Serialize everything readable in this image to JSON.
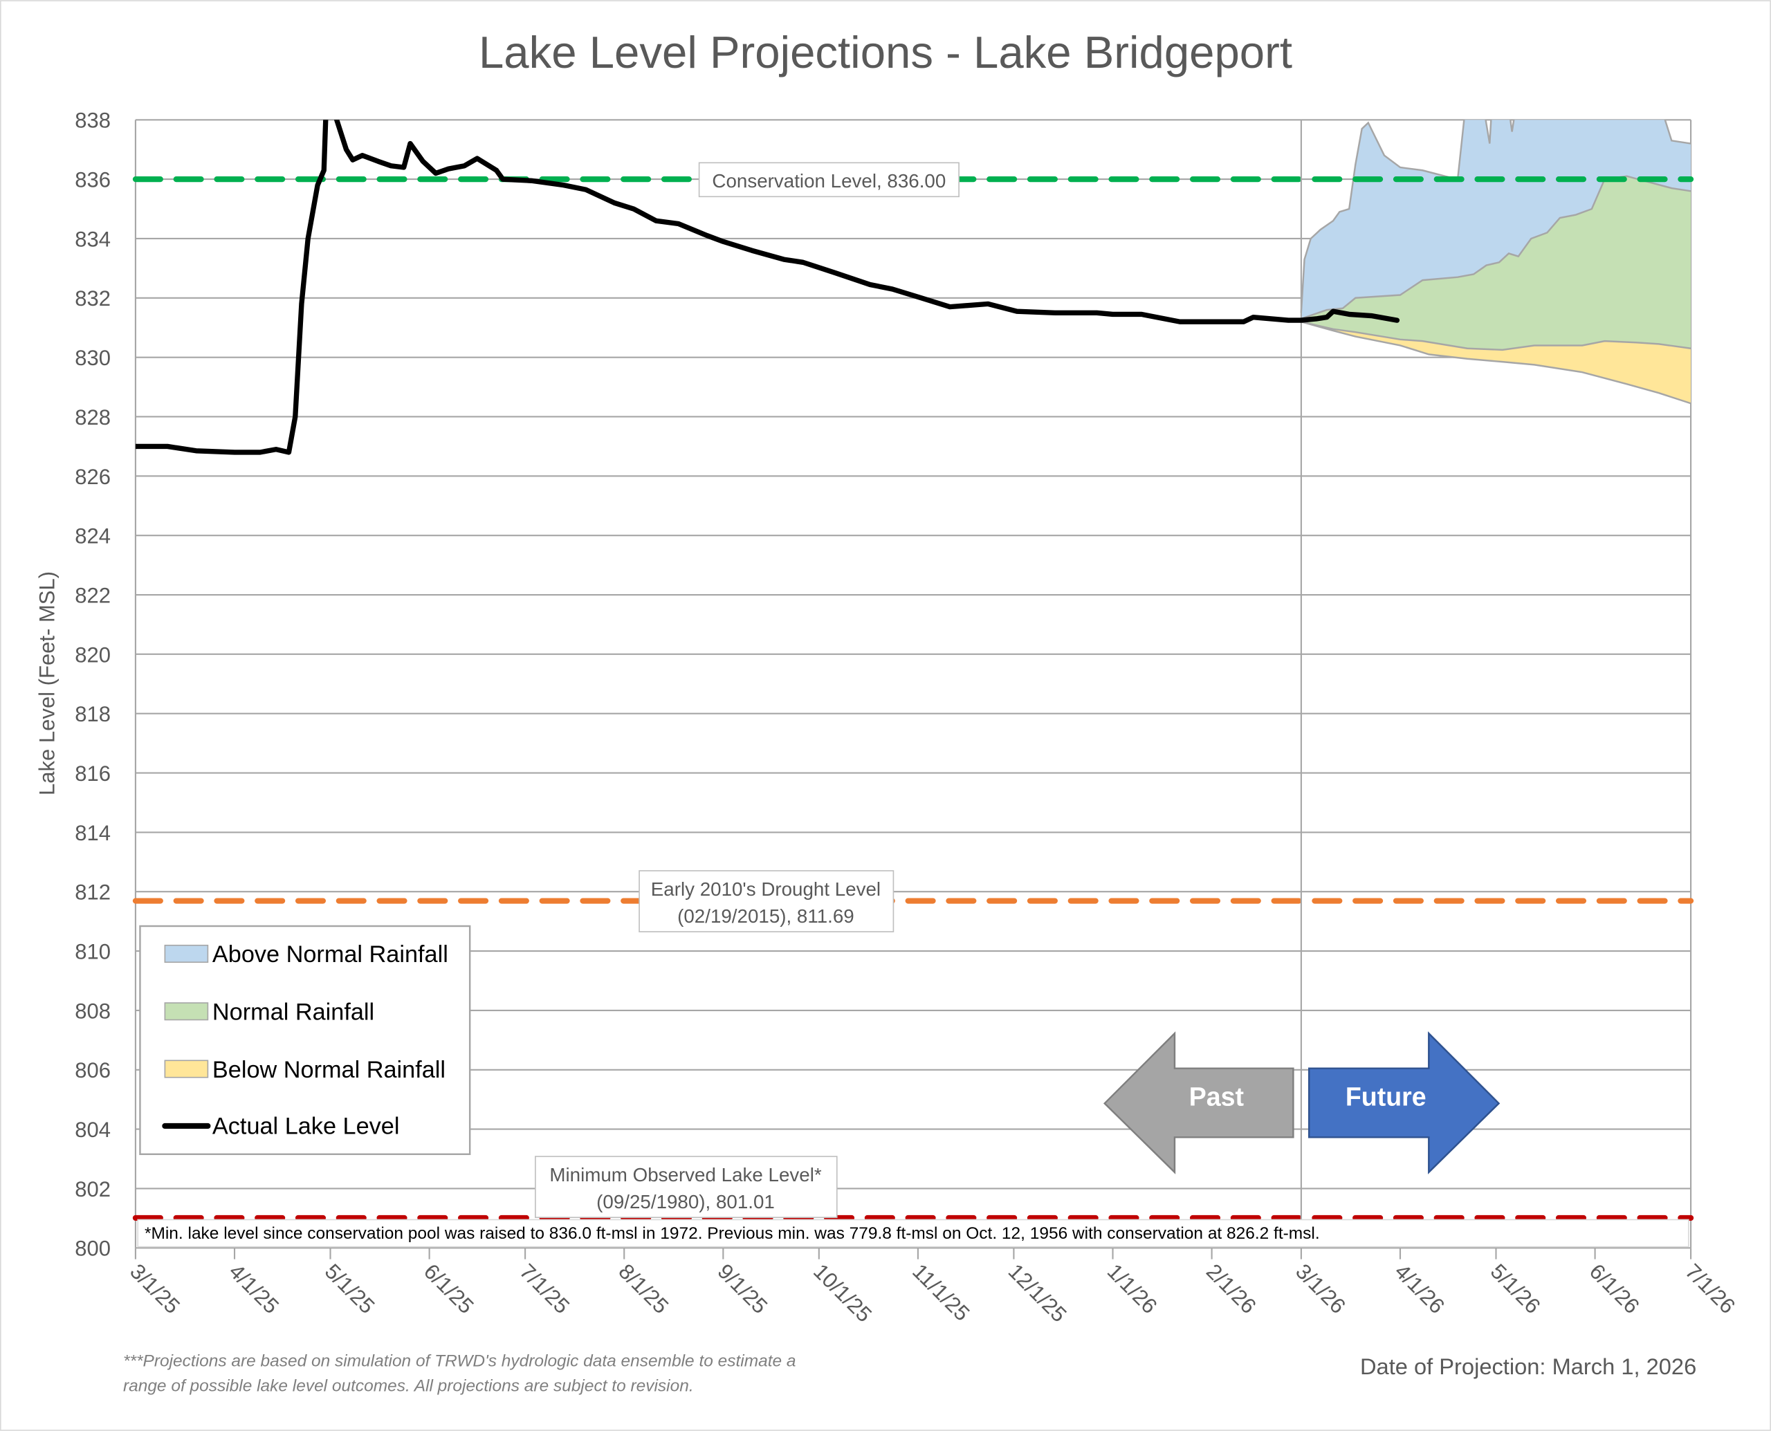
{
  "chart_data": {
    "type": "area",
    "title": "Lake Level Projections - Lake Bridgeport",
    "xlabel": "",
    "ylabel": "Lake Level (Feet- MSL)",
    "xlim": [
      "2025-03-01",
      "2026-07-01"
    ],
    "ylim": [
      800,
      838
    ],
    "grid": true,
    "x_tick_labels": [
      "3/1/25",
      "4/1/25",
      "5/1/25",
      "6/1/25",
      "7/1/25",
      "8/1/25",
      "9/1/25",
      "10/1/25",
      "11/1/25",
      "12/1/25",
      "1/1/26",
      "2/1/26",
      "3/1/26",
      "4/1/26",
      "5/1/26",
      "6/1/26",
      "7/1/26"
    ],
    "x_tick_dates": [
      "2025-03-01",
      "2025-04-01",
      "2025-05-01",
      "2025-06-01",
      "2025-07-01",
      "2025-08-01",
      "2025-09-01",
      "2025-10-01",
      "2025-11-01",
      "2025-12-01",
      "2026-01-01",
      "2026-02-01",
      "2026-03-01",
      "2026-04-01",
      "2026-05-01",
      "2026-06-01",
      "2026-07-01"
    ],
    "y_ticks": [
      800,
      802,
      804,
      806,
      808,
      810,
      812,
      814,
      816,
      818,
      820,
      822,
      824,
      826,
      828,
      830,
      832,
      834,
      836,
      838
    ],
    "legend_position": "bottom-left",
    "legend": [
      {
        "label": "Above Normal Rainfall",
        "color": "#BDD7EE"
      },
      {
        "label": "Normal Rainfall",
        "color": "#C5E0B4"
      },
      {
        "label": "Below Normal Rainfall",
        "color": "#FFE699"
      },
      {
        "label": "Actual Lake Level",
        "color": "#000000"
      }
    ],
    "series": [
      {
        "name": "Actual Lake Level",
        "type": "line",
        "color": "#000000",
        "points": [
          [
            "2025-03-01",
            827.0
          ],
          [
            "2025-03-11",
            827.0
          ],
          [
            "2025-03-20",
            826.85
          ],
          [
            "2025-04-01",
            826.8
          ],
          [
            "2025-04-09",
            826.8
          ],
          [
            "2025-04-14",
            826.9
          ],
          [
            "2025-04-18",
            826.8
          ],
          [
            "2025-04-20",
            828.0
          ],
          [
            "2025-04-22",
            831.8
          ],
          [
            "2025-04-24",
            834.0
          ],
          [
            "2025-04-27",
            835.8
          ],
          [
            "2025-04-29",
            836.3
          ],
          [
            "2025-04-30",
            839.5
          ],
          [
            "2025-05-03",
            838.0
          ],
          [
            "2025-05-06",
            837.0
          ],
          [
            "2025-05-08",
            836.65
          ],
          [
            "2025-05-11",
            836.8
          ],
          [
            "2025-05-16",
            836.6
          ],
          [
            "2025-05-20",
            836.45
          ],
          [
            "2025-05-24",
            836.4
          ],
          [
            "2025-05-26",
            837.2
          ],
          [
            "2025-05-30",
            836.6
          ],
          [
            "2025-06-03",
            836.2
          ],
          [
            "2025-06-07",
            836.35
          ],
          [
            "2025-06-12",
            836.45
          ],
          [
            "2025-06-16",
            836.7
          ],
          [
            "2025-06-22",
            836.3
          ],
          [
            "2025-06-24",
            836.0
          ],
          [
            "2025-07-03",
            835.95
          ],
          [
            "2025-07-13",
            835.8
          ],
          [
            "2025-07-20",
            835.65
          ],
          [
            "2025-07-29",
            835.2
          ],
          [
            "2025-08-04",
            835.0
          ],
          [
            "2025-08-11",
            834.6
          ],
          [
            "2025-08-18",
            834.5
          ],
          [
            "2025-08-27",
            834.1
          ],
          [
            "2025-09-01",
            833.9
          ],
          [
            "2025-09-10",
            833.6
          ],
          [
            "2025-09-20",
            833.3
          ],
          [
            "2025-09-26",
            833.2
          ],
          [
            "2025-10-06",
            832.85
          ],
          [
            "2025-10-17",
            832.45
          ],
          [
            "2025-10-24",
            832.3
          ],
          [
            "2025-11-02",
            832.0
          ],
          [
            "2025-11-11",
            831.7
          ],
          [
            "2025-11-23",
            831.8
          ],
          [
            "2025-12-02",
            831.55
          ],
          [
            "2025-12-14",
            831.5
          ],
          [
            "2025-12-27",
            831.5
          ],
          [
            "2026-01-01",
            831.45
          ],
          [
            "2026-01-10",
            831.45
          ],
          [
            "2026-01-22",
            831.2
          ],
          [
            "2026-02-02",
            831.2
          ],
          [
            "2026-02-11",
            831.2
          ],
          [
            "2026-02-14",
            831.35
          ],
          [
            "2026-02-25",
            831.25
          ],
          [
            "2026-03-01",
            831.25
          ],
          [
            "2026-03-06",
            831.3
          ],
          [
            "2026-03-09",
            831.35
          ],
          [
            "2026-03-11",
            831.55
          ],
          [
            "2026-03-16",
            831.45
          ],
          [
            "2026-03-23",
            831.4
          ],
          [
            "2026-03-31",
            831.25
          ]
        ]
      },
      {
        "name": "Above Normal Rainfall",
        "type": "area",
        "color": "#BDD7EE",
        "upper": [
          [
            "2026-03-01",
            831.5
          ],
          [
            "2026-03-02",
            833.3
          ],
          [
            "2026-03-04",
            834.0
          ],
          [
            "2026-03-07",
            834.3
          ],
          [
            "2026-03-11",
            834.6
          ],
          [
            "2026-03-13",
            834.9
          ],
          [
            "2026-03-16",
            835.0
          ],
          [
            "2026-03-18",
            836.5
          ],
          [
            "2026-03-20",
            837.7
          ],
          [
            "2026-03-22",
            837.9
          ],
          [
            "2026-03-27",
            836.8
          ],
          [
            "2026-04-01",
            836.4
          ],
          [
            "2026-04-08",
            836.3
          ],
          [
            "2026-04-15",
            836.1
          ],
          [
            "2026-04-19",
            836.0
          ],
          [
            "2026-04-22",
            839
          ],
          [
            "2026-04-27",
            838.5
          ],
          [
            "2026-04-29",
            837.2
          ],
          [
            "2026-04-30",
            839
          ],
          [
            "2026-05-05",
            838.4
          ],
          [
            "2026-05-06",
            837.6
          ],
          [
            "2026-05-08",
            839
          ],
          [
            "2026-06-20",
            839
          ],
          [
            "2026-06-25",
            837.3
          ],
          [
            "2026-07-01",
            837.2
          ]
        ]
      },
      {
        "name": "Normal Rainfall",
        "type": "area",
        "color": "#C5E0B4",
        "upper": [
          [
            "2026-03-01",
            831.3
          ],
          [
            "2026-03-09",
            831.6
          ],
          [
            "2026-03-14",
            831.65
          ],
          [
            "2026-03-18",
            832.0
          ],
          [
            "2026-04-01",
            832.1
          ],
          [
            "2026-04-08",
            832.6
          ],
          [
            "2026-04-19",
            832.7
          ],
          [
            "2026-04-24",
            832.8
          ],
          [
            "2026-04-28",
            833.1
          ],
          [
            "2026-05-02",
            833.2
          ],
          [
            "2026-05-05",
            833.5
          ],
          [
            "2026-05-08",
            833.4
          ],
          [
            "2026-05-12",
            834.0
          ],
          [
            "2026-05-17",
            834.2
          ],
          [
            "2026-05-21",
            834.7
          ],
          [
            "2026-05-26",
            834.8
          ],
          [
            "2026-05-31",
            835.0
          ],
          [
            "2026-06-04",
            836.0
          ],
          [
            "2026-06-11",
            836.1
          ],
          [
            "2026-06-18",
            835.9
          ],
          [
            "2026-06-25",
            835.7
          ],
          [
            "2026-07-01",
            835.6
          ]
        ]
      },
      {
        "name": "Below Normal Rainfall",
        "type": "area",
        "color": "#FFE699",
        "upper": [
          [
            "2026-03-01",
            831.2
          ],
          [
            "2026-03-11",
            830.95
          ],
          [
            "2026-03-18",
            830.85
          ],
          [
            "2026-04-01",
            830.6
          ],
          [
            "2026-04-08",
            830.55
          ],
          [
            "2026-04-22",
            830.3
          ],
          [
            "2026-05-03",
            830.25
          ],
          [
            "2026-05-13",
            830.4
          ],
          [
            "2026-05-28",
            830.4
          ],
          [
            "2026-06-04",
            830.55
          ],
          [
            "2026-06-14",
            830.5
          ],
          [
            "2026-06-21",
            830.45
          ],
          [
            "2026-07-01",
            830.3
          ]
        ],
        "lower": [
          [
            "2026-03-01",
            831.2
          ],
          [
            "2026-03-11",
            830.9
          ],
          [
            "2026-03-18",
            830.7
          ],
          [
            "2026-04-01",
            830.4
          ],
          [
            "2026-04-10",
            830.1
          ],
          [
            "2026-04-22",
            829.95
          ],
          [
            "2026-05-03",
            829.85
          ],
          [
            "2026-05-13",
            829.75
          ],
          [
            "2026-05-28",
            829.5
          ],
          [
            "2026-06-11",
            829.1
          ],
          [
            "2026-06-21",
            828.8
          ],
          [
            "2026-07-01",
            828.45
          ]
        ]
      }
    ],
    "reference_lines": [
      {
        "value": 836.0,
        "color": "#00B050",
        "label": [
          "Conservation Level, 836.00"
        ]
      },
      {
        "value": 811.69,
        "color": "#ED7D31",
        "label": [
          "Early 2010's Drought Level",
          "(02/19/2015), 811.69"
        ]
      },
      {
        "value": 801.01,
        "color": "#C00000",
        "label": [
          "Minimum Observed Lake Level*",
          "(09/25/1980), 801.01"
        ]
      }
    ],
    "divider_date": "2026-03-01",
    "arrows": {
      "past": "Past",
      "future": "Future",
      "past_color": "#A5A5A5",
      "future_color": "#4472C4"
    },
    "footnote": "*Min. lake level since conservation pool was raised to 836.0 ft-msl in 1972.  Previous min. was 779.8 ft-msl on Oct. 12, 1956 with conservation at 826.2 ft-msl.",
    "notes": [
      "***Projections are based on simulation of TRWD's hydrologic data ensemble to estimate a",
      "range of possible lake level outcomes.  All projections are subject to revision."
    ],
    "projection_date": "Date of Projection: March 1, 2026"
  }
}
